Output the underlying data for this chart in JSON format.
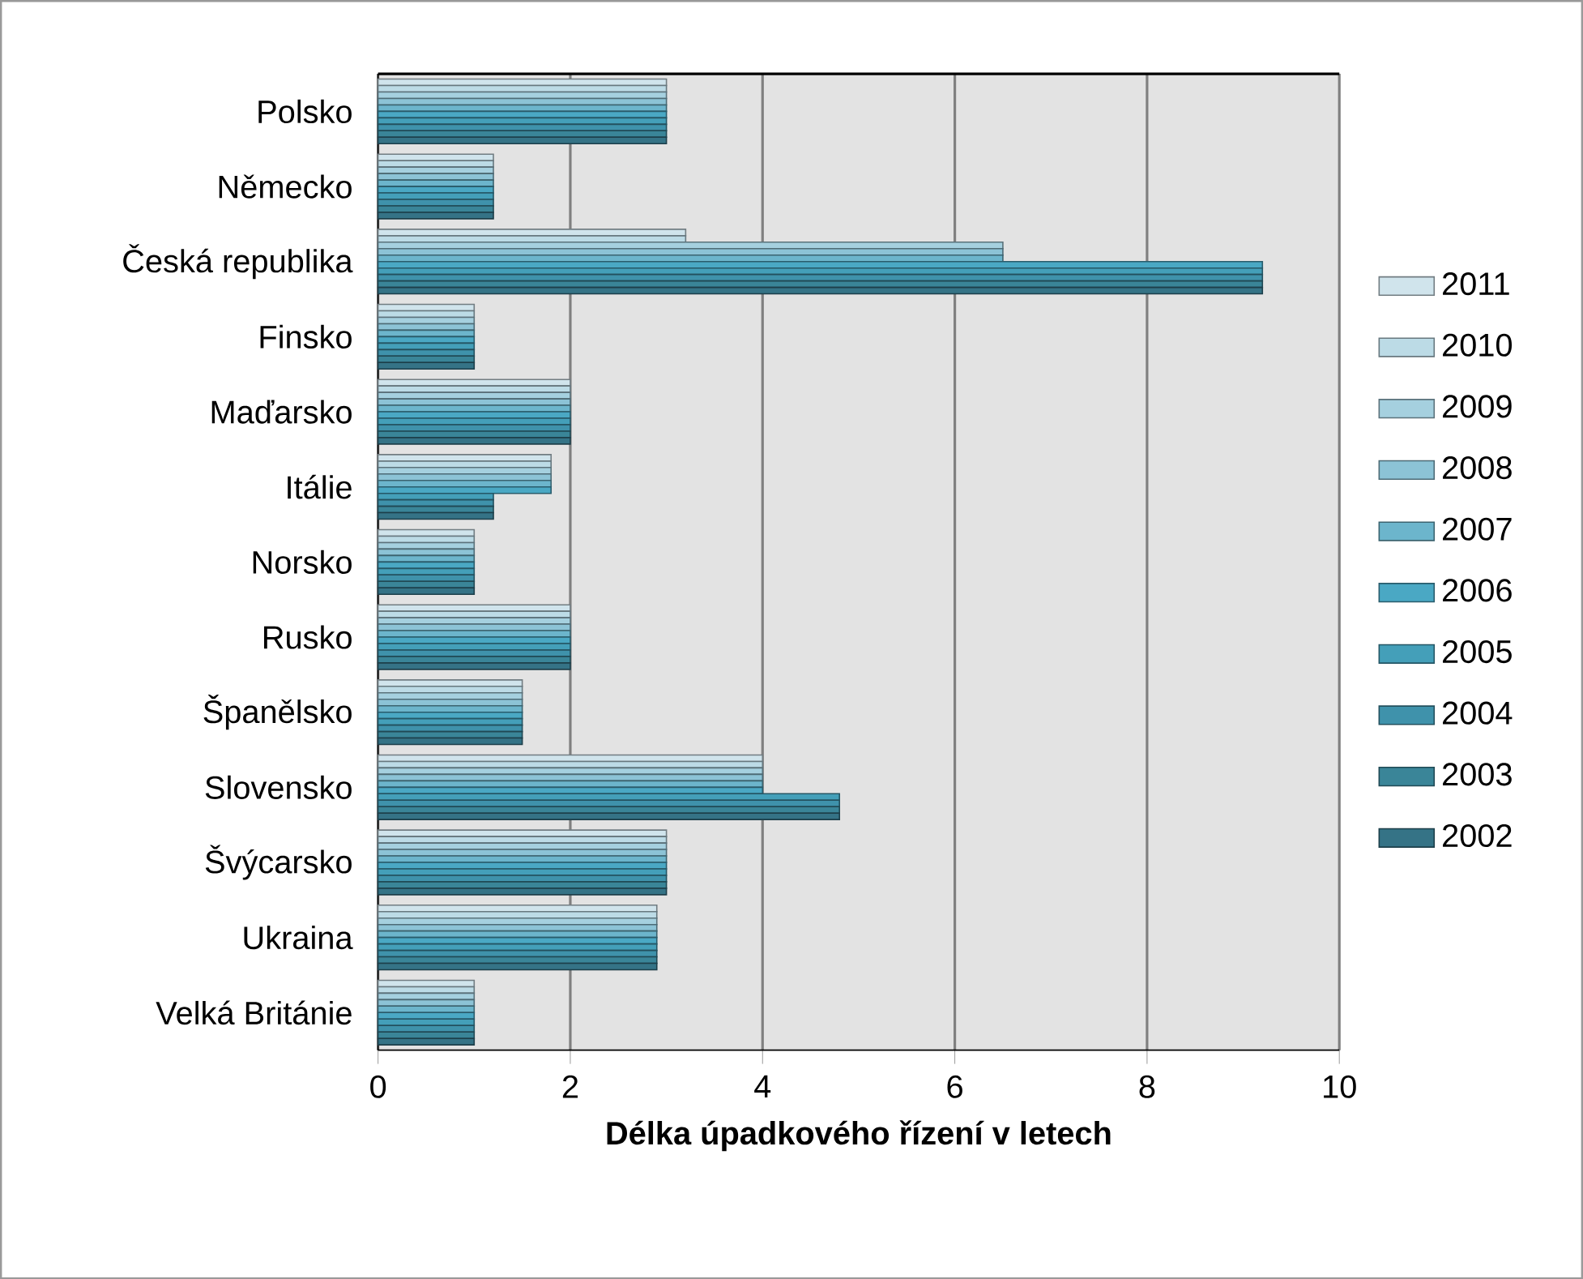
{
  "chart_data": {
    "type": "bar",
    "orientation": "horizontal",
    "xlabel": "Délka úpadkového řízení v letech",
    "categories": [
      "Polsko",
      "Německo",
      "Česká republika",
      "Finsko",
      "Maďarsko",
      "Itálie",
      "Norsko",
      "Rusko",
      "Španělsko",
      "Slovensko",
      "Švýcarsko",
      "Ukraina",
      "Velká Británie"
    ],
    "series": [
      {
        "name": "2011",
        "color": "#d0e4ec",
        "values": [
          3.0,
          1.2,
          3.2,
          1.0,
          2.0,
          1.8,
          1.0,
          2.0,
          1.5,
          4.0,
          3.0,
          2.9,
          1.0
        ]
      },
      {
        "name": "2010",
        "color": "#bcdbe6",
        "values": [
          3.0,
          1.2,
          3.2,
          1.0,
          2.0,
          1.8,
          1.0,
          2.0,
          1.5,
          4.0,
          3.0,
          2.9,
          1.0
        ]
      },
      {
        "name": "2009",
        "color": "#a5d0df",
        "values": [
          3.0,
          1.2,
          6.5,
          1.0,
          2.0,
          1.8,
          1.0,
          2.0,
          1.5,
          4.0,
          3.0,
          2.9,
          1.0
        ]
      },
      {
        "name": "2008",
        "color": "#8cc3d6",
        "values": [
          3.0,
          1.2,
          6.5,
          1.0,
          2.0,
          1.8,
          1.0,
          2.0,
          1.5,
          4.0,
          3.0,
          2.9,
          1.0
        ]
      },
      {
        "name": "2007",
        "color": "#6cb5cc",
        "values": [
          3.0,
          1.2,
          6.5,
          1.0,
          2.0,
          1.8,
          1.0,
          2.0,
          1.5,
          4.0,
          3.0,
          2.9,
          1.0
        ]
      },
      {
        "name": "2006",
        "color": "#4aa8c4",
        "values": [
          3.0,
          1.2,
          9.2,
          1.0,
          2.0,
          1.8,
          1.0,
          2.0,
          1.5,
          4.0,
          3.0,
          2.9,
          1.0
        ]
      },
      {
        "name": "2005",
        "color": "#449fb9",
        "values": [
          3.0,
          1.2,
          9.2,
          1.0,
          2.0,
          1.2,
          1.0,
          2.0,
          1.5,
          4.8,
          3.0,
          2.9,
          1.0
        ]
      },
      {
        "name": "2004",
        "color": "#3f92ab",
        "values": [
          3.0,
          1.2,
          9.2,
          1.0,
          2.0,
          1.2,
          1.0,
          2.0,
          1.5,
          4.8,
          3.0,
          2.9,
          1.0
        ]
      },
      {
        "name": "2003",
        "color": "#3a8598",
        "values": [
          3.0,
          1.2,
          9.2,
          1.0,
          2.0,
          1.2,
          1.0,
          2.0,
          1.5,
          4.8,
          3.0,
          2.9,
          1.0
        ]
      },
      {
        "name": "2002",
        "color": "#357386",
        "values": [
          3.0,
          1.2,
          9.2,
          1.0,
          2.0,
          1.2,
          1.0,
          2.0,
          1.5,
          4.8,
          3.0,
          2.9,
          1.0
        ]
      }
    ],
    "xlim": [
      0,
      10
    ],
    "xticks": [
      0,
      2,
      4,
      6,
      8,
      10
    ],
    "grid": "x",
    "legend": "right"
  }
}
